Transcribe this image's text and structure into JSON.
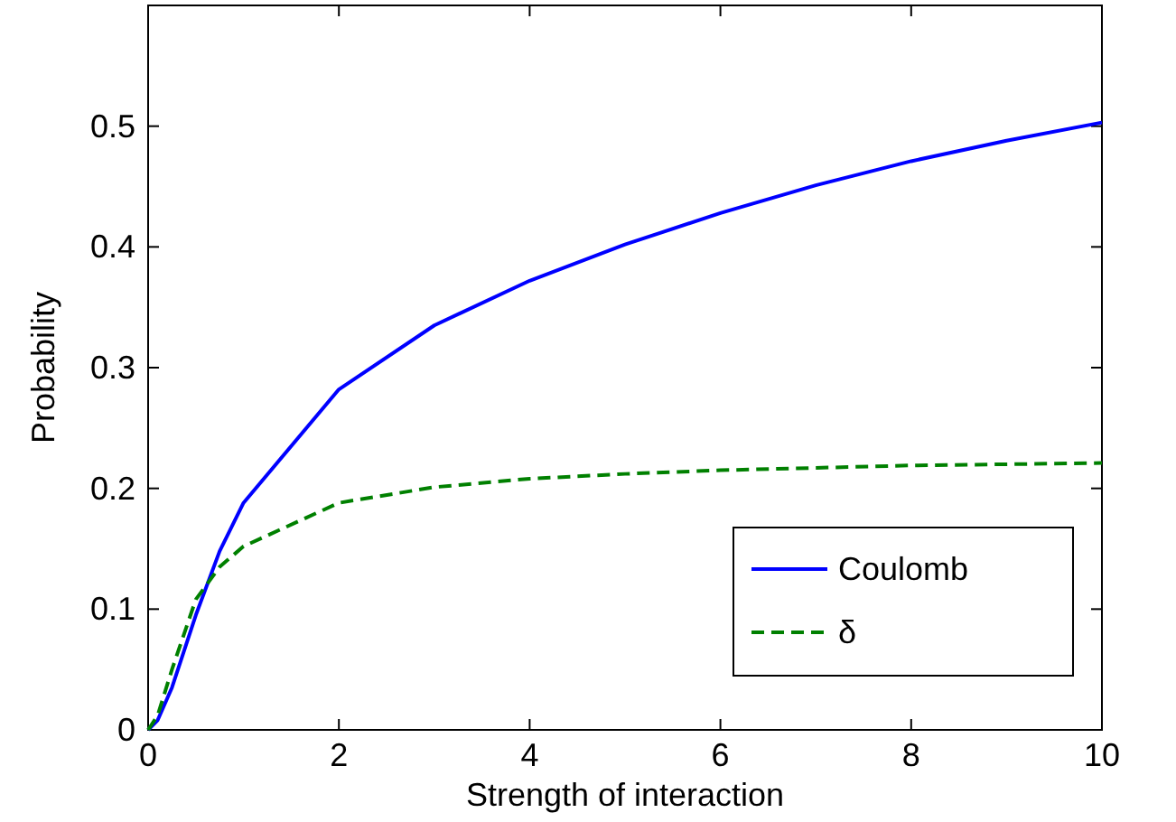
{
  "chart_data": {
    "type": "line",
    "xlabel": "Strength of interaction",
    "ylabel": "Probability",
    "xlim": [
      0,
      10
    ],
    "ylim": [
      0,
      0.6
    ],
    "xticks": [
      0,
      2,
      4,
      6,
      8,
      10
    ],
    "yticks": [
      0,
      0.1,
      0.2,
      0.3,
      0.4,
      0.5
    ],
    "legend": "bottom right",
    "grid": false,
    "x": [
      0,
      0.1,
      0.25,
      0.5,
      0.75,
      1,
      2,
      3,
      4,
      5,
      6,
      7,
      8,
      9,
      10
    ],
    "series": [
      {
        "name": "Coulomb",
        "color": "#0000ff",
        "line_style": "solid",
        "values": [
          0,
          0.008,
          0.035,
          0.095,
          0.148,
          0.188,
          0.282,
          0.335,
          0.372,
          0.402,
          0.428,
          0.451,
          0.471,
          0.488,
          0.503
        ]
      },
      {
        "name": "δ",
        "color": "#008000",
        "line_style": "dashed",
        "values": [
          0,
          0.012,
          0.05,
          0.108,
          0.135,
          0.152,
          0.188,
          0.201,
          0.208,
          0.212,
          0.215,
          0.217,
          0.219,
          0.22,
          0.221
        ]
      }
    ]
  }
}
